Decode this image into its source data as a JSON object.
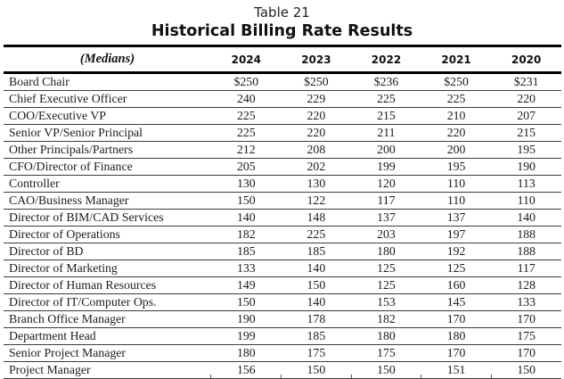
{
  "title": {
    "table_number": "Table 21",
    "table_title": "Historical Billing Rate Results"
  },
  "table": {
    "header": {
      "medians_label": "(Medians)",
      "years": [
        "2024",
        "2023",
        "2022",
        "2021",
        "2020"
      ]
    },
    "rows": [
      {
        "label": "Board Chair",
        "values": [
          "$250",
          "$250",
          "$236",
          "$250",
          "$231"
        ]
      },
      {
        "label": "Chief Executive Officer",
        "values": [
          "240",
          "229",
          "225",
          "225",
          "220"
        ]
      },
      {
        "label": "COO/Executive VP",
        "values": [
          "225",
          "220",
          "215",
          "210",
          "207"
        ]
      },
      {
        "label": "Senior VP/Senior Principal",
        "values": [
          "225",
          "220",
          "211",
          "220",
          "215"
        ]
      },
      {
        "label": "Other Principals/Partners",
        "values": [
          "212",
          "208",
          "200",
          "200",
          "195"
        ]
      },
      {
        "label": "CFO/Director of Finance",
        "values": [
          "205",
          "202",
          "199",
          "195",
          "190"
        ]
      },
      {
        "label": "Controller",
        "values": [
          "130",
          "130",
          "120",
          "110",
          "113"
        ]
      },
      {
        "label": "CAO/Business Manager",
        "values": [
          "150",
          "122",
          "117",
          "110",
          "110"
        ]
      },
      {
        "label": "Director of BIM/CAD Services",
        "values": [
          "140",
          "148",
          "137",
          "137",
          "140"
        ]
      },
      {
        "label": "Director of Operations",
        "values": [
          "182",
          "225",
          "203",
          "197",
          "188"
        ]
      },
      {
        "label": "Director of BD",
        "values": [
          "185",
          "185",
          "180",
          "192",
          "188"
        ]
      },
      {
        "label": "Director of Marketing",
        "values": [
          "133",
          "140",
          "125",
          "125",
          "117"
        ]
      },
      {
        "label": "Director of Human Resources",
        "values": [
          "149",
          "150",
          "125",
          "160",
          "128"
        ]
      },
      {
        "label": "Director of IT/Computer Ops.",
        "values": [
          "150",
          "140",
          "153",
          "145",
          "133"
        ]
      },
      {
        "label": "Branch Office Manager",
        "values": [
          "190",
          "178",
          "182",
          "170",
          "170"
        ]
      },
      {
        "label": "Department Head",
        "values": [
          "199",
          "185",
          "180",
          "180",
          "175"
        ]
      },
      {
        "label": "Senior Project Manager",
        "values": [
          "180",
          "175",
          "175",
          "170",
          "170"
        ]
      },
      {
        "label": "Project Manager",
        "values": [
          "156",
          "150",
          "150",
          "151",
          "150"
        ]
      }
    ]
  },
  "colors": {
    "heavy_rule": "#000000",
    "row_rule": "#3b3b3b",
    "text": "#1c1c1c"
  }
}
